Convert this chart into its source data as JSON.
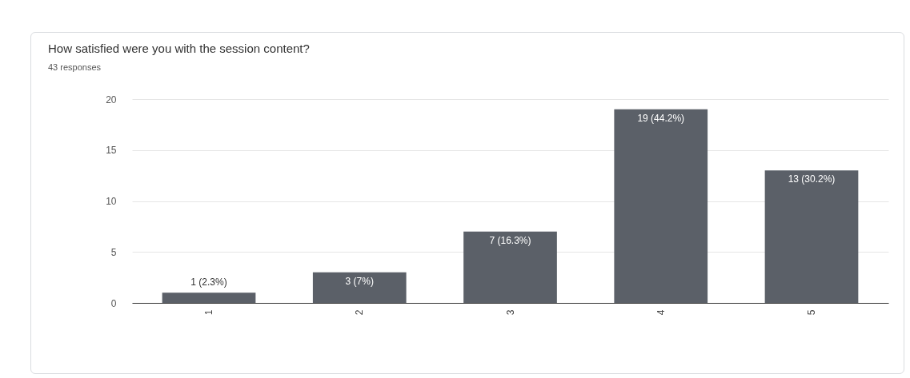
{
  "chart_data": {
    "type": "bar",
    "title": "How satisfied were you with the session content?",
    "subtitle": "43 responses",
    "categories": [
      "1",
      "2",
      "3",
      "4",
      "5"
    ],
    "values": [
      1,
      3,
      7,
      19,
      13
    ],
    "value_labels": [
      "1 (2.3%)",
      "3 (7%)",
      "7 (16.3%)",
      "19 (44.2%)",
      "13 (30.2%)"
    ],
    "color": "#5b6068",
    "ylim": [
      0,
      20
    ],
    "yticks": [
      0,
      5,
      10,
      15,
      20
    ],
    "grid": "y"
  }
}
